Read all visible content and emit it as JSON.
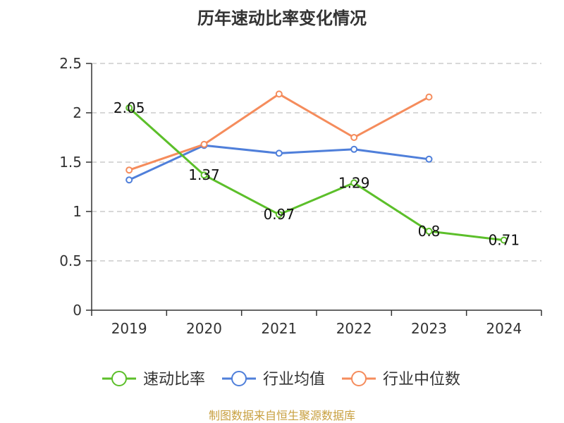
{
  "chart_data": {
    "type": "line",
    "title": "历年速动比率变化情况",
    "categories": [
      "2019",
      "2020",
      "2021",
      "2022",
      "2023",
      "2024"
    ],
    "y_ticks": [
      "0",
      "0.5",
      "1",
      "1.5",
      "2",
      "2.5"
    ],
    "ylim": [
      0,
      2.5
    ],
    "grid": true,
    "legend_position": "bottom",
    "series": [
      {
        "name": "速动比率",
        "color": "#5cbf2a",
        "values": [
          2.05,
          1.37,
          0.97,
          1.29,
          0.8,
          0.71
        ],
        "labels": [
          "2.05",
          "1.37",
          "0.97",
          "1.29",
          "0.8",
          "0.71"
        ]
      },
      {
        "name": "行业均值",
        "color": "#4f7fda",
        "values": [
          1.32,
          1.67,
          1.59,
          1.63,
          1.53,
          null
        ]
      },
      {
        "name": "行业中位数",
        "color": "#f58c5c",
        "values": [
          1.42,
          1.68,
          2.19,
          1.75,
          2.16,
          null
        ]
      }
    ]
  },
  "source_text": "制图数据来自恒生聚源数据库"
}
